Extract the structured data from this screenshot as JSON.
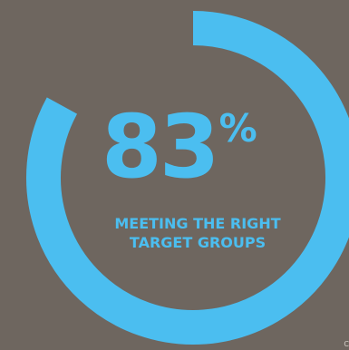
{
  "chart_data": {
    "type": "pie",
    "values": [
      83,
      17
    ],
    "value_label": "83",
    "unit": "%",
    "caption_lines": [
      "MEETING THE RIGHT",
      "TARGET GROUPS"
    ],
    "colors": {
      "background": "#6e665f",
      "accent": "#4bbef0"
    }
  },
  "footer": {
    "edge_text": "C"
  }
}
